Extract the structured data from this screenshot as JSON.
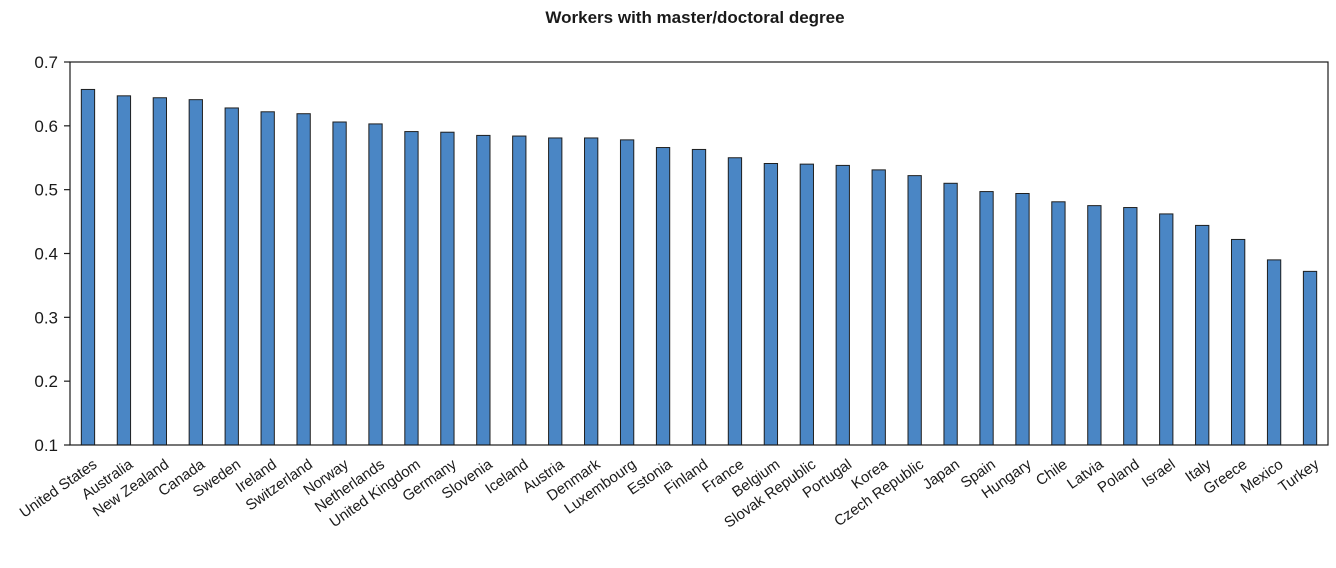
{
  "colors": {
    "bar": "#4a86c5",
    "bar_edge": "#1f1f1f",
    "axis": "#1a1a1a"
  },
  "chart_data": {
    "type": "bar",
    "title": "Workers with master/doctoral degree",
    "xlabel": "",
    "ylabel": "",
    "ylim": [
      0.1,
      0.7
    ],
    "yticks": [
      0.1,
      0.2,
      0.3,
      0.4,
      0.5,
      0.6,
      0.7
    ],
    "ytick_labels": [
      "0.1",
      "0.2",
      "0.3",
      "0.4",
      "0.5",
      "0.6",
      "0.7"
    ],
    "grid": false,
    "legend": "none",
    "categories": [
      "United States",
      "Australia",
      "New Zealand",
      "Canada",
      "Sweden",
      "Ireland",
      "Switzerland",
      "Norway",
      "Netherlands",
      "United Kingdom",
      "Germany",
      "Slovenia",
      "Iceland",
      "Austria",
      "Denmark",
      "Luxembourg",
      "Estonia",
      "Finland",
      "France",
      "Belgium",
      "Slovak Republic",
      "Portugal",
      "Korea",
      "Czech Republic",
      "Japan",
      "Spain",
      "Hungary",
      "Chile",
      "Latvia",
      "Poland",
      "Israel",
      "Italy",
      "Greece",
      "Mexico",
      "Turkey"
    ],
    "values": [
      0.657,
      0.647,
      0.644,
      0.641,
      0.628,
      0.622,
      0.619,
      0.606,
      0.603,
      0.591,
      0.59,
      0.585,
      0.584,
      0.581,
      0.581,
      0.578,
      0.566,
      0.563,
      0.55,
      0.541,
      0.54,
      0.538,
      0.531,
      0.522,
      0.51,
      0.497,
      0.494,
      0.481,
      0.475,
      0.472,
      0.462,
      0.444,
      0.422,
      0.39,
      0.372
    ]
  }
}
